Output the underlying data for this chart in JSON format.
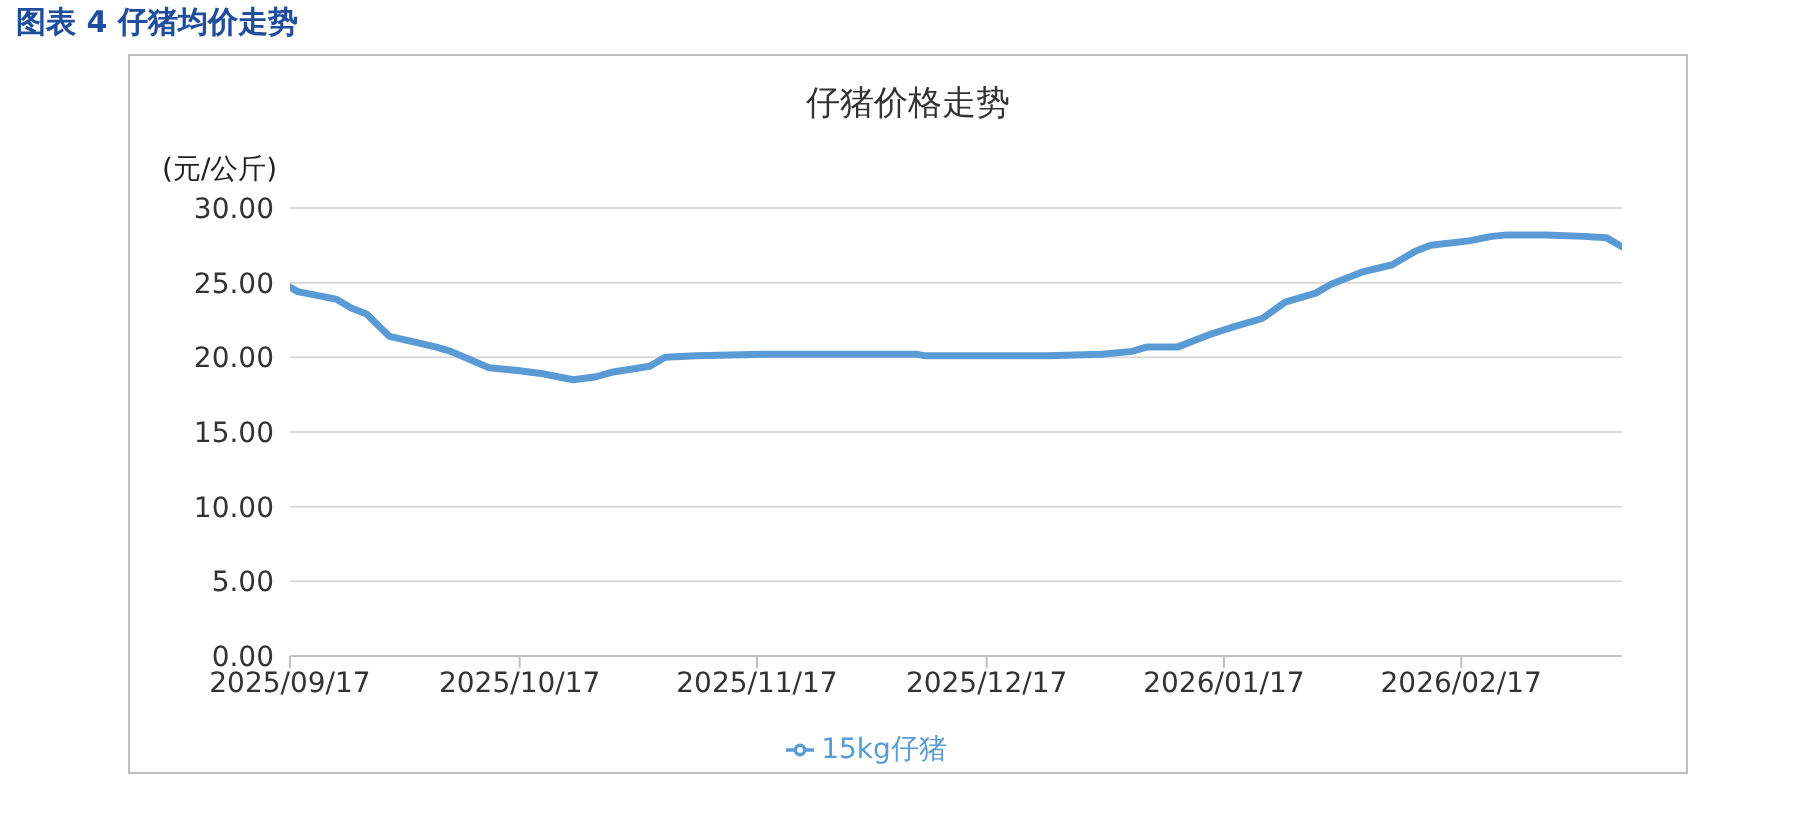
{
  "chart_data": {
    "type": "line",
    "title": "图表 4 仔猪均价走势",
    "subtitle": "仔猪价格走势",
    "ylabel": "(元/公斤)",
    "x": [
      "2025-09-17",
      "2025-09-18",
      "2025-09-23",
      "2025-09-25",
      "2025-09-27",
      "2025-09-30",
      "2025-10-06",
      "2025-10-08",
      "2025-10-13",
      "2025-10-17",
      "2025-10-20",
      "2025-10-24",
      "2025-10-27",
      "2025-10-29",
      "2025-11-03",
      "2025-11-05",
      "2025-11-09",
      "2025-11-18",
      "2025-12-01",
      "2025-12-08",
      "2025-12-09",
      "2025-12-14",
      "2025-12-25",
      "2026-01-01",
      "2026-01-05",
      "2026-01-07",
      "2026-01-11",
      "2026-01-15",
      "2026-01-18",
      "2026-01-22",
      "2026-01-25",
      "2026-01-29",
      "2026-01-31",
      "2026-02-04",
      "2026-02-08",
      "2026-02-11",
      "2026-02-13",
      "2026-02-18",
      "2026-02-21",
      "2026-02-23",
      "2026-02-28",
      "2026-03-05",
      "2026-03-08",
      "2026-03-10"
    ],
    "series": [
      {
        "name": "15kg仔猪",
        "color": "#5b9bd5",
        "values": [
          24.7,
          24.4,
          23.9,
          23.3,
          22.9,
          21.4,
          20.7,
          20.4,
          19.3,
          19.1,
          18.9,
          18.5,
          18.7,
          19.0,
          19.4,
          20.0,
          20.1,
          20.2,
          20.2,
          20.2,
          20.1,
          20.1,
          20.1,
          20.2,
          20.4,
          20.7,
          20.7,
          21.5,
          22.0,
          22.6,
          23.7,
          24.3,
          24.9,
          25.7,
          26.2,
          27.1,
          27.5,
          27.8,
          28.1,
          28.2,
          28.2,
          28.1,
          28.0,
          27.4
        ]
      }
    ],
    "xlim": [
      "2025-09-17",
      "2026-03-10"
    ],
    "xticks": [
      {
        "value": "2025-09-17",
        "label": "2025/09/17"
      },
      {
        "value": "2025-10-17",
        "label": "2025/10/17"
      },
      {
        "value": "2025-11-17",
        "label": "2025/11/17"
      },
      {
        "value": "2025-12-17",
        "label": "2025/12/17"
      },
      {
        "value": "2026-01-17",
        "label": "2026/01/17"
      },
      {
        "value": "2026-02-17",
        "label": "2026/02/17"
      }
    ],
    "ylim": [
      0,
      30
    ],
    "yticks": [
      {
        "value": 0,
        "label": "0.00"
      },
      {
        "value": 5,
        "label": "5.00"
      },
      {
        "value": 10,
        "label": "10.00"
      },
      {
        "value": 15,
        "label": "15.00"
      },
      {
        "value": 20,
        "label": "20.00"
      },
      {
        "value": 25,
        "label": "25.00"
      },
      {
        "value": 30,
        "label": "30.00"
      }
    ],
    "grid": "y",
    "legend": "bottom",
    "marker": "none",
    "line_style": "solid"
  }
}
